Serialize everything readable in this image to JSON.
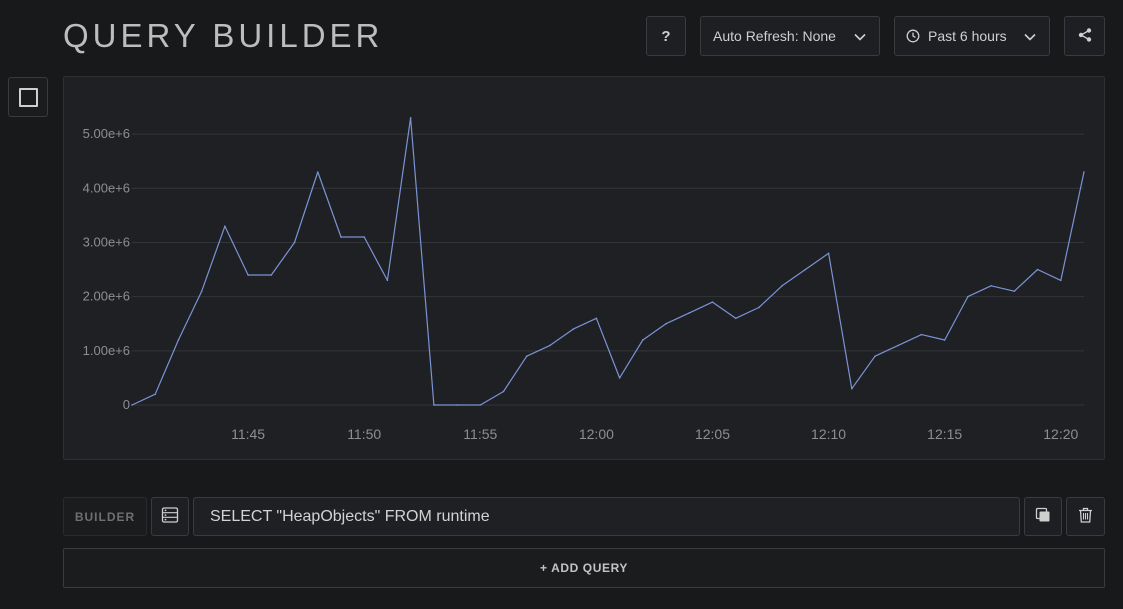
{
  "header": {
    "title": "QUERY BUILDER",
    "help_label": "?",
    "auto_refresh_label": "Auto Refresh: None",
    "time_range_label": "Past 6 hours"
  },
  "icons": {
    "toggle": "checkbox-square-icon",
    "clock": "clock-icon",
    "chevron": "chevron-down-icon",
    "share": "share-icon",
    "list": "list-icon",
    "copy": "copy-icon",
    "delete": "trash-icon"
  },
  "query": {
    "mode_label": "BUILDER",
    "text": "SELECT \"HeapObjects\" FROM runtime"
  },
  "add_query_label": "+ ADD QUERY",
  "colors": {
    "background": "#18191b",
    "panel": "#1f2023",
    "series": "#7b93d6",
    "grid": "#34353a"
  },
  "chart_data": {
    "type": "line",
    "title": "",
    "xlabel": "",
    "ylabel": "",
    "grid": true,
    "legend": "none",
    "x_range": [
      "11:40",
      "12:21"
    ],
    "ylim": [
      0,
      5500000
    ],
    "y_ticks": [
      {
        "value": 0,
        "label": "0"
      },
      {
        "value": 1000000,
        "label": "1.00e+6"
      },
      {
        "value": 2000000,
        "label": "2.00e+6"
      },
      {
        "value": 3000000,
        "label": "3.00e+6"
      },
      {
        "value": 4000000,
        "label": "4.00e+6"
      },
      {
        "value": 5000000,
        "label": "5.00e+6"
      }
    ],
    "x_ticks": [
      "11:45",
      "11:50",
      "11:55",
      "12:00",
      "12:05",
      "12:10",
      "12:15",
      "12:20"
    ],
    "series": [
      {
        "name": "HeapObjects",
        "x": [
          "11:40",
          "11:41",
          "11:42",
          "11:43",
          "11:44",
          "11:45",
          "11:46",
          "11:47",
          "11:48",
          "11:49",
          "11:50",
          "11:51",
          "11:52",
          "11:53",
          "11:54",
          "11:55",
          "11:56",
          "11:57",
          "11:58",
          "11:59",
          "12:00",
          "12:01",
          "12:02",
          "12:03",
          "12:04",
          "12:05",
          "12:06",
          "12:07",
          "12:08",
          "12:09",
          "12:10",
          "12:11",
          "12:12",
          "12:13",
          "12:14",
          "12:15",
          "12:16",
          "12:17",
          "12:18",
          "12:19",
          "12:20",
          "12:21"
        ],
        "values": [
          0,
          200000,
          1200000,
          2100000,
          3300000,
          2400000,
          2400000,
          3000000,
          4300000,
          3100000,
          3100000,
          2300000,
          5300000,
          0,
          0,
          0,
          250000,
          900000,
          1100000,
          1400000,
          1600000,
          500000,
          1200000,
          1500000,
          1700000,
          1900000,
          1600000,
          1800000,
          2200000,
          2500000,
          2800000,
          300000,
          900000,
          1100000,
          1300000,
          1200000,
          2000000,
          2200000,
          2100000,
          2500000,
          2300000,
          4300000
        ]
      }
    ]
  }
}
